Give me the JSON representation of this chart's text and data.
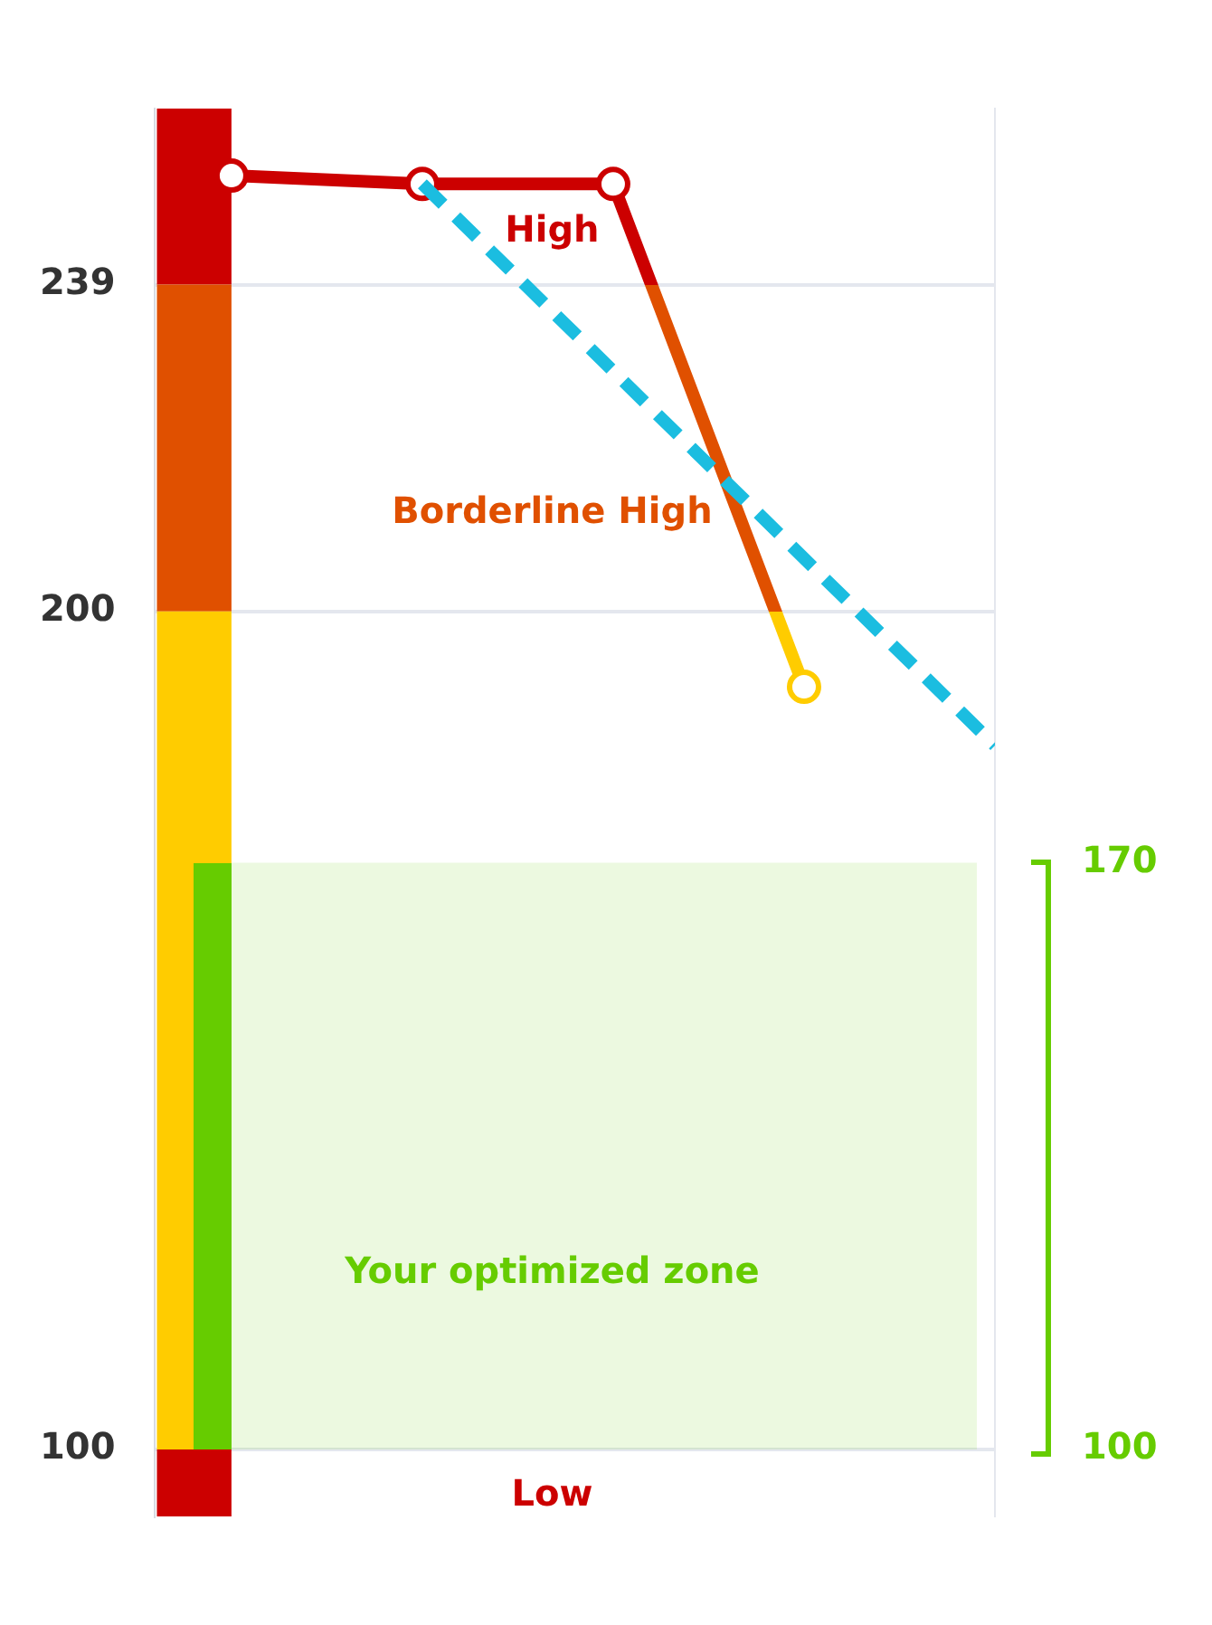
{
  "chart_data": {
    "type": "line",
    "categories": [
      null,
      null,
      null,
      null,
      null
    ],
    "series": [
      {
        "color": "#cc0000",
        "colors": [
          "#cc0000",
          "#cc0000",
          "#cc0000",
          "#ffcc00",
          null
        ],
        "values": [
          252,
          251,
          251,
          191,
          null
        ],
        "marker": "circle"
      },
      {
        "color": "#1bbde0",
        "values": [
          null,
          251,
          null,
          null,
          184
        ],
        "line_style": "dashed",
        "marker": "none"
      }
    ],
    "ylim": [
      92,
      260
    ],
    "yticks": [
      100,
      200,
      239
    ],
    "y2lim": [
      92,
      260
    ],
    "y2ticks": [
      100,
      170
    ],
    "grid": "y",
    "legend": false,
    "bands": [
      {
        "axis": "y",
        "from": 239,
        "to": 260,
        "label": "High",
        "color": "#cc0000"
      },
      {
        "axis": "y",
        "from": 200,
        "to": 239,
        "label": "Borderline High",
        "color": "#e05000"
      },
      {
        "axis": "y",
        "from": 100,
        "to": 200,
        "color": "#ffcc00"
      },
      {
        "axis": "y",
        "from": 92,
        "to": 100,
        "label": "Low",
        "color": "#cc0000"
      },
      {
        "axis": "y",
        "from": 100,
        "to": 170,
        "label": "Your optimized zone",
        "color": "#66cc00"
      }
    ]
  }
}
